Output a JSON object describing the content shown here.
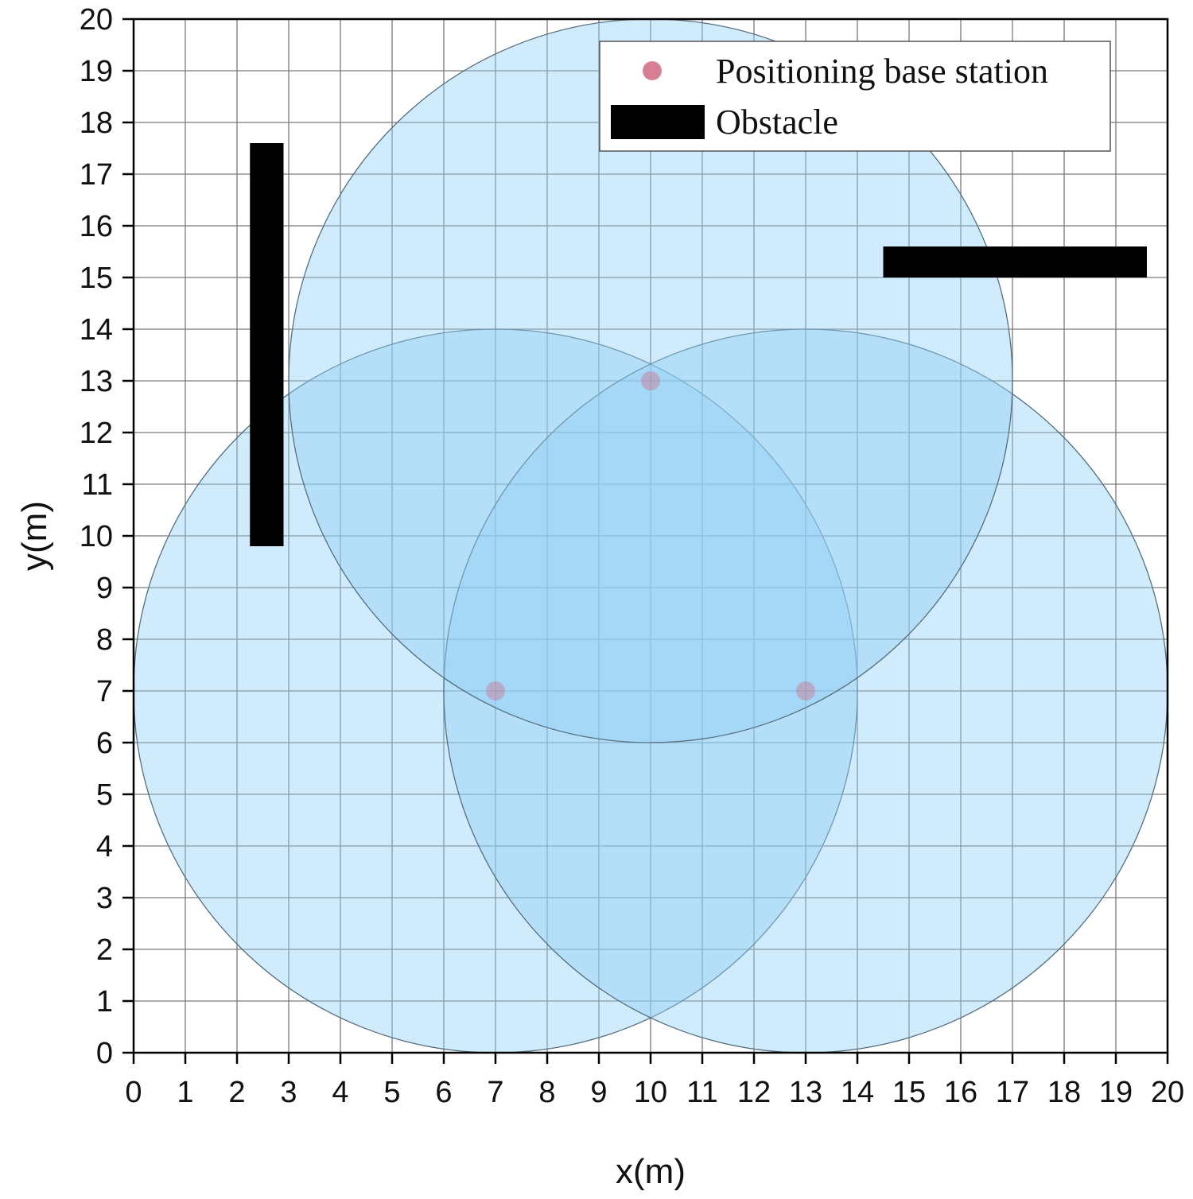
{
  "chart_data": {
    "type": "scatter",
    "xlabel": "x(m)",
    "ylabel": "y(m)",
    "xlim": [
      0,
      20
    ],
    "ylim": [
      0,
      20
    ],
    "x_ticks": [
      0,
      1,
      2,
      3,
      4,
      5,
      6,
      7,
      8,
      9,
      10,
      11,
      12,
      13,
      14,
      15,
      16,
      17,
      18,
      19,
      20
    ],
    "y_ticks": [
      0,
      1,
      2,
      3,
      4,
      5,
      6,
      7,
      8,
      9,
      10,
      11,
      12,
      13,
      14,
      15,
      16,
      17,
      18,
      19,
      20
    ],
    "grid": true,
    "legend": {
      "placement": "top-right",
      "entries": [
        {
          "label": "Positioning base station",
          "marker": "circle"
        },
        {
          "label": "Obstacle",
          "marker": "rect"
        }
      ]
    },
    "base_stations": [
      {
        "x": 7,
        "y": 7
      },
      {
        "x": 10,
        "y": 13
      },
      {
        "x": 13,
        "y": 7
      }
    ],
    "coverage_circles": [
      {
        "cx": 7,
        "cy": 7,
        "r": 7
      },
      {
        "cx": 13,
        "cy": 7,
        "r": 7
      },
      {
        "cx": 10,
        "cy": 13,
        "r": 7
      }
    ],
    "obstacles": [
      {
        "x0": 2.25,
        "x1": 2.9,
        "y0": 9.8,
        "y1": 17.6
      },
      {
        "x0": 14.5,
        "x1": 19.6,
        "y0": 15.0,
        "y1": 15.6
      }
    ],
    "colors": {
      "circle_fill": "#8fd0f5",
      "circle_stroke": "#55707f",
      "station": "#d06a82",
      "obstacle": "#000000",
      "grid": "#7a7a7a"
    }
  }
}
